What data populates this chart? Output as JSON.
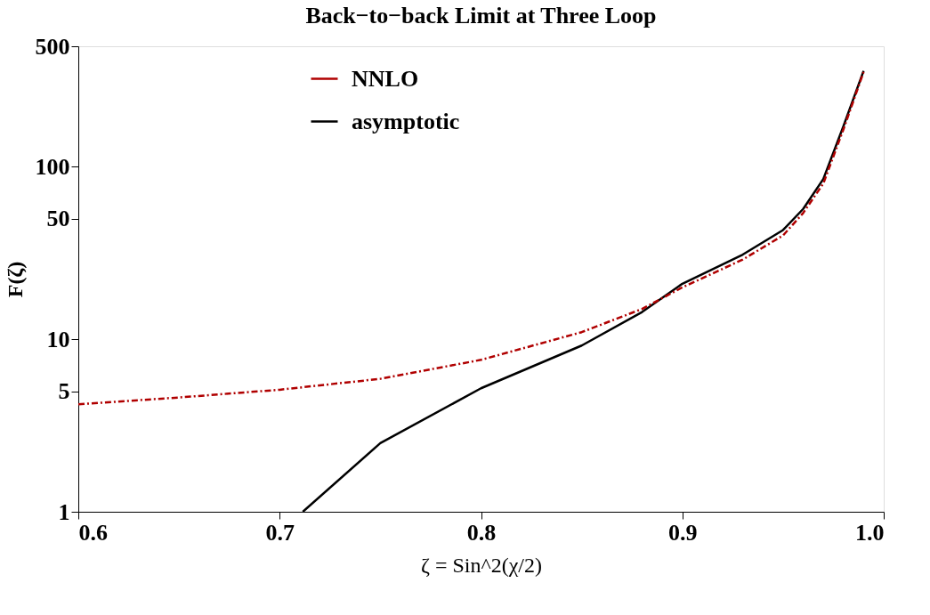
{
  "chart_data": {
    "type": "line",
    "title": "Back−to−back Limit at Three Loop",
    "xlabel": "ζ = Sin^2(χ/2)",
    "ylabel": "F(ζ)",
    "log": "y",
    "legend": "top left",
    "grid": false,
    "xlim": [
      0.6,
      1.0
    ],
    "ylim": [
      1,
      500
    ],
    "xticks": [
      0.6,
      0.7,
      0.8,
      0.9,
      {
        "value": 1.0,
        "label": "1.0"
      }
    ],
    "yticks": [
      1,
      5,
      10,
      50,
      100,
      500
    ],
    "series": [
      {
        "name": "NNLO",
        "color": "#b00000",
        "line_style": "dashed",
        "x": [
          0.6,
          0.65,
          0.7,
          0.75,
          0.8,
          0.85,
          0.88,
          0.9,
          0.93,
          0.95,
          0.96,
          0.97,
          0.98,
          0.99
        ],
        "values": [
          4.2,
          4.6,
          5.1,
          5.9,
          7.6,
          11,
          15,
          20,
          29,
          40,
          54,
          80,
          165,
          355
        ]
      },
      {
        "name": "asymptotic",
        "color": "#000000",
        "line_style": "solid",
        "x": [
          0.7115,
          0.75,
          0.8,
          0.85,
          0.88,
          0.9,
          0.93,
          0.95,
          0.96,
          0.97,
          0.98,
          0.99
        ],
        "values": [
          1,
          2.5,
          5.2,
          9.2,
          14.4,
          21,
          31,
          43,
          57,
          85,
          172,
          360
        ]
      }
    ]
  }
}
